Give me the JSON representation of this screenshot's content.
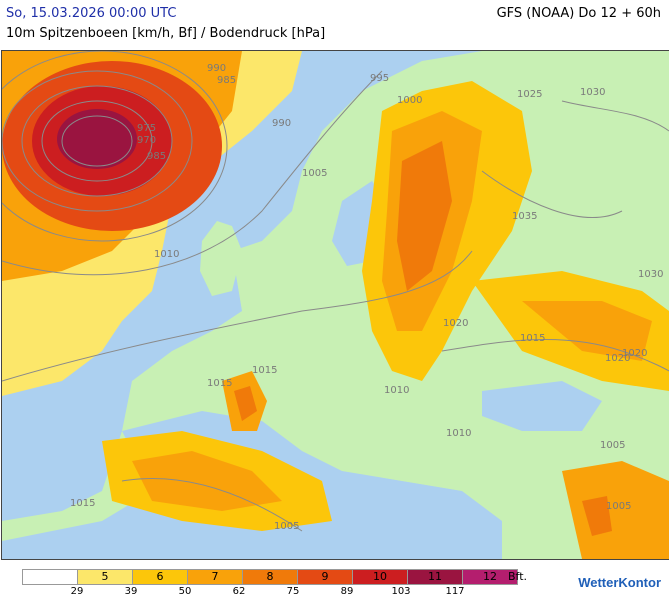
{
  "header": {
    "date": "So, 15.03.2026 00:00 UTC",
    "model": "GFS (NOAA) Do 12 + 60h",
    "subtitle": "10m Spitzenboeen [km/h, Bf] / Bodendruck [hPa]"
  },
  "map": {
    "isobar_labels": [
      "990",
      "985",
      "975",
      "970",
      "985",
      "990",
      "995",
      "1000",
      "1005",
      "1010",
      "1015",
      "1015",
      "1005",
      "1015",
      "1020",
      "1025",
      "1030",
      "1035",
      "1030",
      "1020",
      "1015",
      "1020",
      "1010",
      "1010",
      "1005",
      "1005"
    ],
    "colors": {
      "sea": "#acd0f0",
      "land": "#c8f0b4",
      "bf5": "#fce76a",
      "bf6": "#fcc60a",
      "bf7": "#f9a20a",
      "bf8": "#f07a0a",
      "bf9": "#e44a14",
      "bf10": "#cc1e20",
      "bf11": "#9a1440",
      "bf12": "#b41e6e"
    }
  },
  "legend": {
    "cells": [
      {
        "label": "",
        "color": "#ffffff"
      },
      {
        "label": "5",
        "color": "#fce76a"
      },
      {
        "label": "6",
        "color": "#fcc60a"
      },
      {
        "label": "7",
        "color": "#f9a20a"
      },
      {
        "label": "8",
        "color": "#f07a0a"
      },
      {
        "label": "9",
        "color": "#e44a14"
      },
      {
        "label": "10",
        "color": "#cc1e20"
      },
      {
        "label": "11",
        "color": "#9a1440"
      },
      {
        "label": "12",
        "color": "#b41e6e"
      }
    ],
    "unit": "Bft.",
    "ticks": [
      "29",
      "39",
      "50",
      "62",
      "75",
      "89",
      "103",
      "117"
    ]
  },
  "brand": "WetterKontor"
}
